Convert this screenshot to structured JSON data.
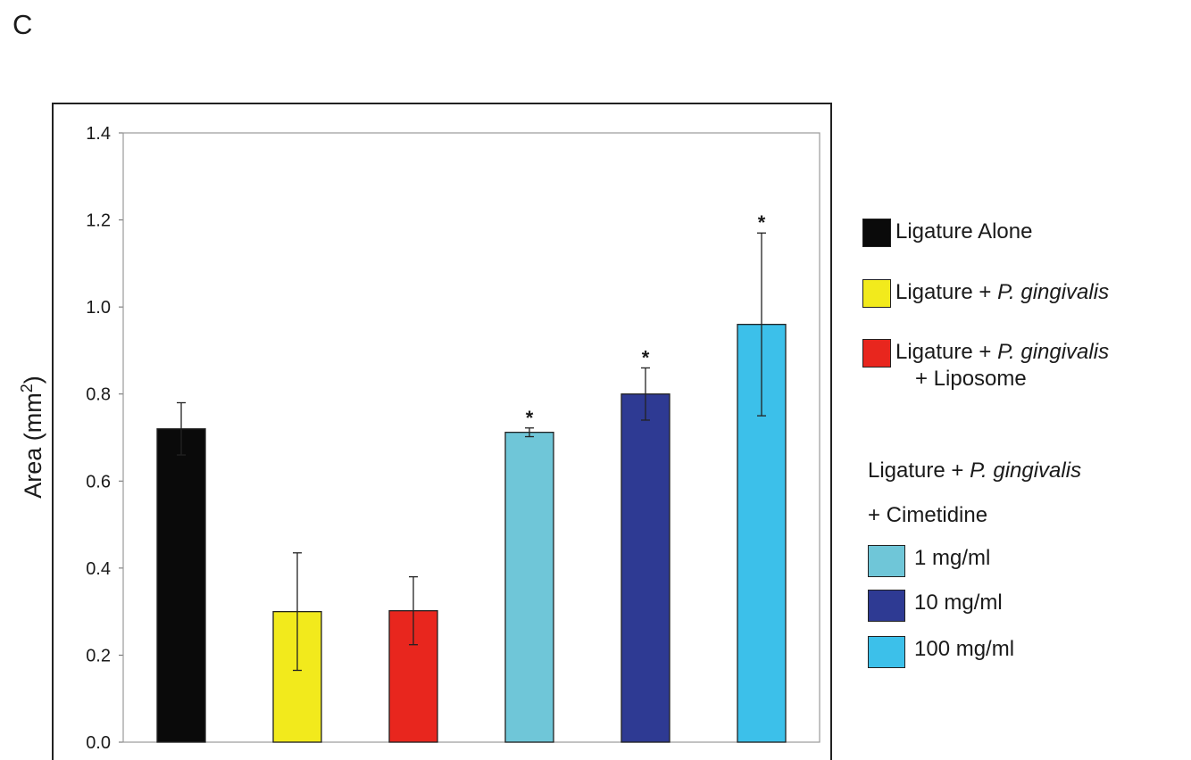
{
  "panel_label": "C",
  "chart_data": {
    "type": "bar",
    "ylabel": "Area (mm",
    "ylabel_sup": "2",
    "ylabel_close": ")",
    "ylim": [
      0,
      1.4
    ],
    "yticks": [
      "0.0",
      "0.2",
      "0.4",
      "0.6",
      "0.8",
      "1.0",
      "1.2",
      "1.4"
    ],
    "ytick_values": [
      0.0,
      0.2,
      0.4,
      0.6,
      0.8,
      1.0,
      1.2,
      1.4
    ],
    "grid": false,
    "legend_position": "right",
    "bars": [
      {
        "value": 0.72,
        "error": 0.06,
        "color": "#0a0a0a",
        "significant": false
      },
      {
        "value": 0.3,
        "error": 0.135,
        "color": "#f2ea1c",
        "significant": false
      },
      {
        "value": 0.302,
        "error": 0.078,
        "color": "#e8261e",
        "significant": false
      },
      {
        "value": 0.712,
        "error": 0.01,
        "color": "#6fc6d8",
        "significant": true
      },
      {
        "value": 0.8,
        "error": 0.06,
        "color": "#2e3a93",
        "significant": true
      },
      {
        "value": 0.96,
        "error": 0.21,
        "color": "#3cc0ea",
        "significant": true
      }
    ],
    "significance_marker": "*"
  },
  "legend": {
    "ligature_alone": "Ligature Alone",
    "ligature_pg_prefix": "Ligature + ",
    "pg_species": "P. gingivalis",
    "liposome_suffix": "+ Liposome",
    "cimetidine_header_prefix": "Ligature + ",
    "cimetidine_header_species": "P. gingivalis",
    "cimetidine_suffix": "+ Cimetidine",
    "dose_1": "1 mg/ml",
    "dose_10": "10 mg/ml",
    "dose_100": "100 mg/ml",
    "colors": {
      "ligature_alone": "#0a0a0a",
      "ligature_pg": "#f2ea1c",
      "liposome": "#e8261e",
      "dose_1": "#6fc6d8",
      "dose_10": "#2e3a93",
      "dose_100": "#3cc0ea"
    }
  }
}
